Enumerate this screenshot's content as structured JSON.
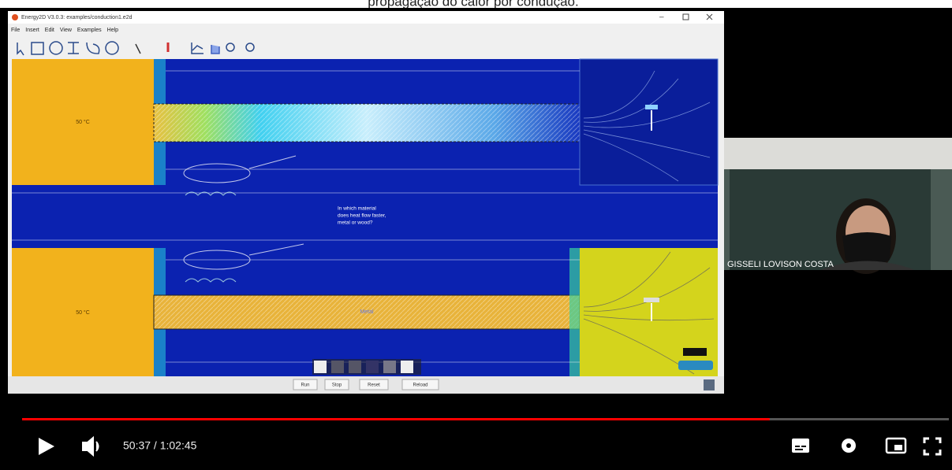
{
  "caption": "propagação do calor por condução.",
  "window": {
    "title": "Energy2D V3.0.3: examples/conduction1.e2d",
    "menu": [
      "File",
      "Insert",
      "Edit",
      "View",
      "Examples",
      "Help"
    ]
  },
  "simulation": {
    "temp_top": "50 °C",
    "temp_bottom": "50 °C",
    "question_lines": [
      "In which material",
      "does heat flow faster,",
      "metal or wood?"
    ],
    "rod_label": "Metal",
    "buttons": [
      "Run",
      "Stop",
      "Reset",
      "Reload"
    ]
  },
  "webcam": {
    "name": "GISSELI LOVISON COSTA"
  },
  "player": {
    "time": "50:37 / 1:02:45"
  }
}
